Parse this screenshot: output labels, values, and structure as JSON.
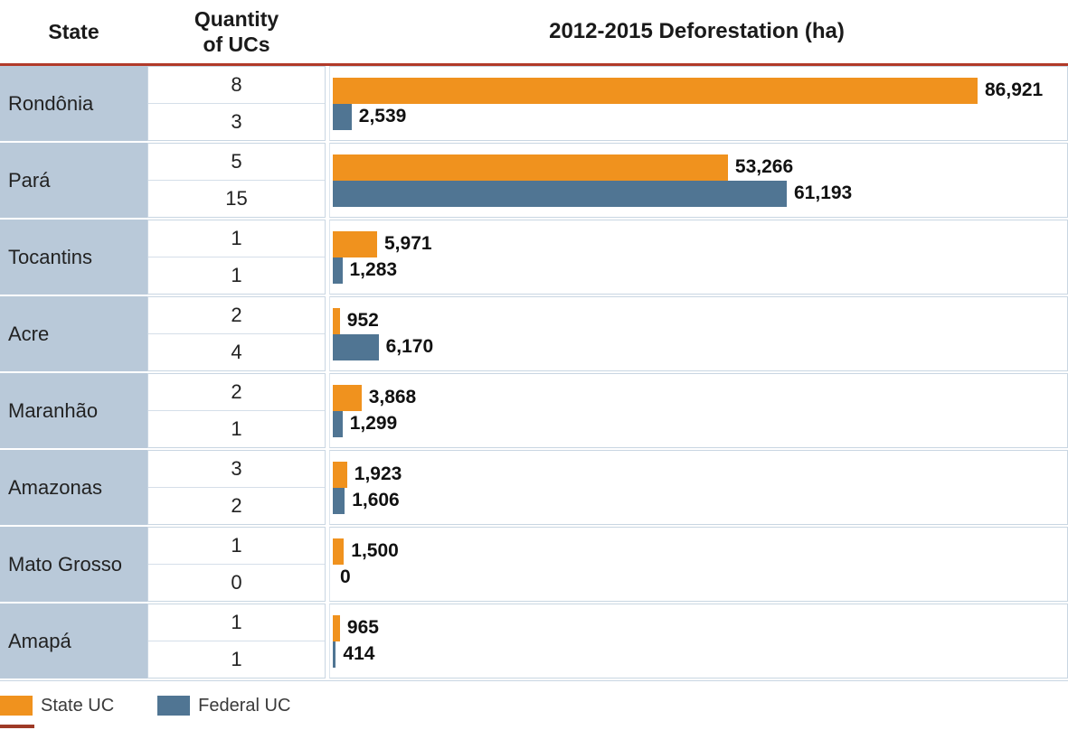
{
  "title_row": {
    "state_header": "State",
    "quantity_header_line1": "Quantity",
    "quantity_header_line2": "of UCs",
    "chart_header": "2012-2015 Deforestation (ha)"
  },
  "colors": {
    "state_uc_orange": "#F0921E",
    "federal_uc_blue": "#507593",
    "state_cell_bg": "#B9C9D9",
    "header_rule_red": "#B13A29",
    "cell_border": "#C9D6E2",
    "bottom_accent_red": "#9E3A26"
  },
  "rows": [
    {
      "state": "Rondônia",
      "state_uc_count": "8",
      "federal_uc_count": "3",
      "state_uc_value": 86921,
      "federal_uc_value": 2539,
      "state_uc_label": "86,921",
      "federal_uc_label": "2,539"
    },
    {
      "state": "Pará",
      "state_uc_count": "5",
      "federal_uc_count": "15",
      "state_uc_value": 53266,
      "federal_uc_value": 61193,
      "state_uc_label": "53,266",
      "federal_uc_label": "61,193"
    },
    {
      "state": "Tocantins",
      "state_uc_count": "1",
      "federal_uc_count": "1",
      "state_uc_value": 5971,
      "federal_uc_value": 1283,
      "state_uc_label": "5,971",
      "federal_uc_label": "1,283"
    },
    {
      "state": "Acre",
      "state_uc_count": "2",
      "federal_uc_count": "4",
      "state_uc_value": 952,
      "federal_uc_value": 6170,
      "state_uc_label": "952",
      "federal_uc_label": "6,170"
    },
    {
      "state": "Maranhão",
      "state_uc_count": "2",
      "federal_uc_count": "1",
      "state_uc_value": 3868,
      "federal_uc_value": 1299,
      "state_uc_label": "3,868",
      "federal_uc_label": "1,299"
    },
    {
      "state": "Amazonas",
      "state_uc_count": "3",
      "federal_uc_count": "2",
      "state_uc_value": 1923,
      "federal_uc_value": 1606,
      "state_uc_label": "1,923",
      "federal_uc_label": "1,606"
    },
    {
      "state": "Mato Grosso",
      "state_uc_count": "1",
      "federal_uc_count": "0",
      "state_uc_value": 1500,
      "federal_uc_value": 0,
      "state_uc_label": "1,500",
      "federal_uc_label": "0"
    },
    {
      "state": "Amapá",
      "state_uc_count": "1",
      "federal_uc_count": "1",
      "state_uc_value": 965,
      "federal_uc_value": 414,
      "state_uc_label": "965",
      "federal_uc_label": "414"
    }
  ],
  "legend": {
    "items": [
      {
        "label": "State UC",
        "color": "#F0921E"
      },
      {
        "label": "Federal UC",
        "color": "#507593"
      }
    ]
  },
  "chart_data": {
    "type": "bar",
    "orientation": "horizontal",
    "title": "2012-2015 Deforestation (ha)",
    "categories": [
      "Rondônia",
      "Pará",
      "Tocantins",
      "Acre",
      "Maranhão",
      "Amazonas",
      "Mato Grosso",
      "Amapá"
    ],
    "series": [
      {
        "name": "State UC",
        "color": "#F0921E",
        "values": [
          86921,
          53266,
          5971,
          952,
          3868,
          1923,
          1500,
          965
        ]
      },
      {
        "name": "Federal UC",
        "color": "#507593",
        "values": [
          2539,
          61193,
          1283,
          6170,
          1299,
          1606,
          0,
          414
        ]
      }
    ],
    "quantity_of_ucs": {
      "state": [
        8,
        5,
        1,
        2,
        2,
        3,
        1,
        1
      ],
      "federal": [
        3,
        15,
        1,
        4,
        1,
        2,
        0,
        1
      ]
    },
    "xlim": [
      0,
      86921
    ],
    "grid": false,
    "data_labels": true,
    "legend_position": "bottom-left"
  }
}
